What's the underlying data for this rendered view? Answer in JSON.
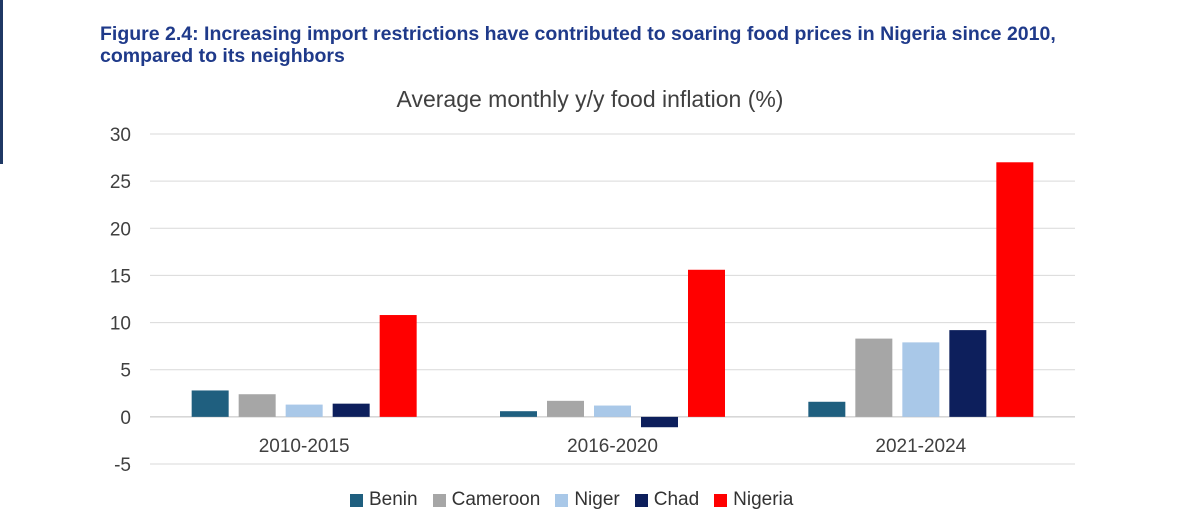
{
  "figure": {
    "title": "Figure 2.4: Increasing import restrictions have contributed to soaring food prices in Nigeria since 2010, compared to its neighbors"
  },
  "chart_data": {
    "type": "bar",
    "title": "Average monthly y/y food inflation (%)",
    "xlabel": "",
    "ylabel": "",
    "categories": [
      "2010-2015",
      "2016-2020",
      "2021-2024"
    ],
    "series": [
      {
        "name": "Benin",
        "color": "#1f5f7f",
        "values": [
          2.8,
          0.6,
          1.6
        ]
      },
      {
        "name": "Cameroon",
        "color": "#a6a6a6",
        "values": [
          2.4,
          1.7,
          8.3
        ]
      },
      {
        "name": "Niger",
        "color": "#a9c8e8",
        "values": [
          1.3,
          1.2,
          7.9
        ]
      },
      {
        "name": "Chad",
        "color": "#0d1f5c",
        "values": [
          1.4,
          -1.1,
          9.2
        ]
      },
      {
        "name": "Nigeria",
        "color": "#ff0000",
        "values": [
          10.8,
          15.6,
          27.0
        ]
      }
    ],
    "ylim": [
      -5,
      30
    ],
    "yticks": [
      -5,
      0,
      5,
      10,
      15,
      20,
      25,
      30
    ],
    "grid": true,
    "legend_position": "bottom"
  }
}
